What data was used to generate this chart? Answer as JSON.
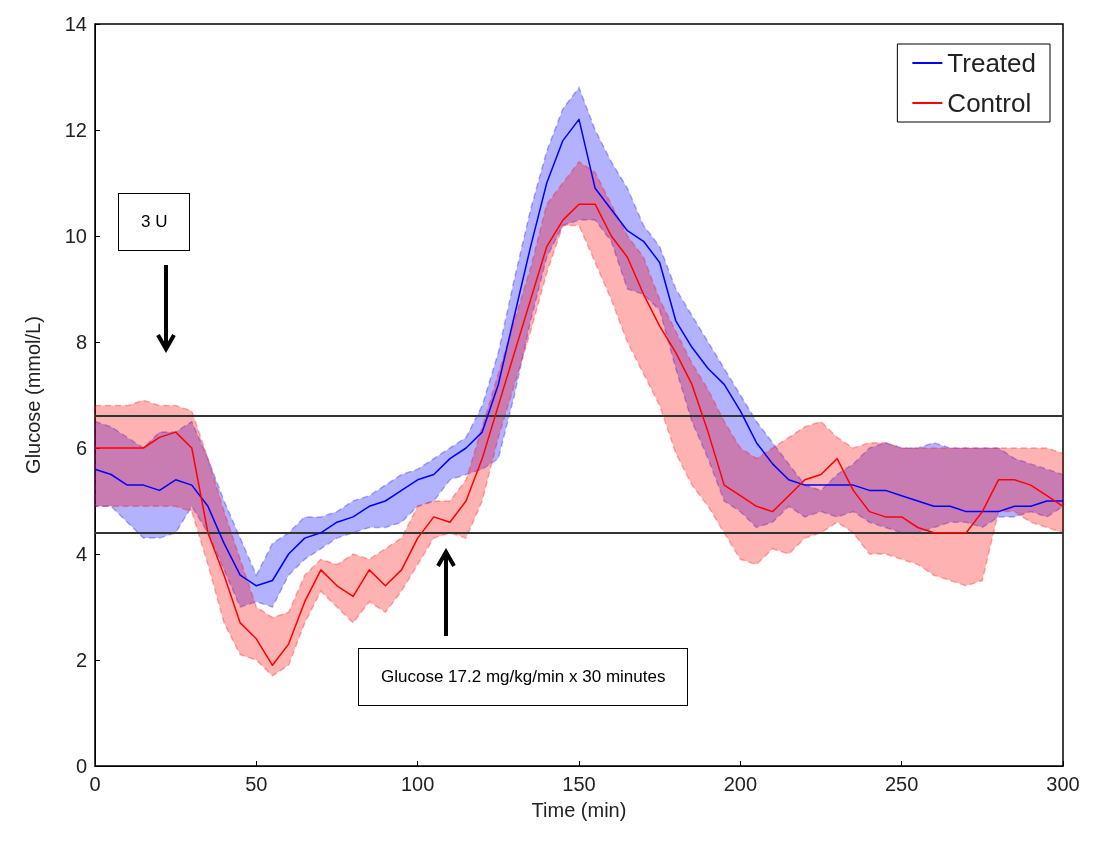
{
  "chart_data": {
    "type": "line",
    "xlabel": "Time (min)",
    "ylabel": "Glucose (mmol/L)",
    "x": [
      0,
      5,
      10,
      15,
      20,
      25,
      30,
      35,
      40,
      45,
      50,
      55,
      60,
      65,
      70,
      75,
      80,
      85,
      90,
      95,
      100,
      105,
      110,
      115,
      120,
      125,
      130,
      135,
      140,
      145,
      150,
      155,
      160,
      165,
      170,
      175,
      180,
      185,
      190,
      195,
      200,
      205,
      210,
      215,
      220,
      225,
      230,
      235,
      240,
      245,
      250,
      255,
      260,
      265,
      270,
      275,
      280,
      285,
      290,
      295,
      300
    ],
    "xlim": [
      0,
      300
    ],
    "xticks": [
      0,
      50,
      100,
      150,
      200,
      250,
      300
    ],
    "ylim": [
      0,
      14
    ],
    "yticks": [
      0,
      2,
      4,
      6,
      8,
      10,
      12,
      14
    ],
    "grid": false,
    "legend": "top right",
    "marker": "none",
    "line_style": "solid",
    "series": [
      {
        "name": "Treated",
        "color": "#0000ff",
        "values": [
          5.6,
          5.5,
          5.3,
          5.3,
          5.2,
          5.4,
          5.3,
          4.9,
          4.2,
          3.6,
          3.4,
          3.5,
          4.0,
          4.3,
          4.4,
          4.6,
          4.7,
          4.9,
          5.0,
          5.2,
          5.4,
          5.5,
          5.8,
          6.0,
          6.3,
          7.2,
          8.5,
          9.8,
          11.0,
          11.8,
          12.2,
          10.9,
          10.5,
          10.1,
          9.9,
          9.5,
          8.4,
          7.9,
          7.5,
          7.2,
          6.7,
          6.1,
          5.7,
          5.4,
          5.3,
          5.3,
          5.3,
          5.3,
          5.2,
          5.2,
          5.1,
          5.0,
          4.9,
          4.9,
          4.8,
          4.8,
          4.8,
          4.9,
          4.9,
          5.0,
          5.0
        ],
        "lower": [
          4.9,
          4.9,
          4.6,
          4.3,
          4.3,
          4.4,
          4.9,
          4.4,
          3.7,
          3.0,
          3.1,
          3.0,
          3.6,
          3.9,
          4.1,
          4.3,
          4.4,
          4.5,
          4.5,
          4.6,
          4.9,
          5.0,
          5.4,
          5.5,
          5.6,
          5.8,
          7.0,
          8.4,
          9.6,
          10.2,
          10.3,
          10.3,
          9.9,
          9.0,
          8.9,
          8.6,
          7.5,
          6.5,
          5.8,
          5.0,
          4.8,
          4.5,
          4.6,
          4.9,
          4.7,
          4.8,
          4.7,
          4.8,
          4.6,
          4.5,
          4.4,
          4.4,
          4.5,
          4.6,
          4.6,
          4.5,
          4.7,
          4.7,
          4.8,
          4.7,
          4.9
        ],
        "upper": [
          6.5,
          6.4,
          6.2,
          6.0,
          6.3,
          6.3,
          6.5,
          5.8,
          5.0,
          4.3,
          3.6,
          4.2,
          4.4,
          4.7,
          4.7,
          4.8,
          5.0,
          5.1,
          5.3,
          5.5,
          5.6,
          5.8,
          6.0,
          6.2,
          6.8,
          7.8,
          9.2,
          10.5,
          11.6,
          12.4,
          12.8,
          12.0,
          11.4,
          10.9,
          10.2,
          9.8,
          9.0,
          8.5,
          8.0,
          7.5,
          7.0,
          6.5,
          6.1,
          5.7,
          5.3,
          5.2,
          5.5,
          5.7,
          6.0,
          6.1,
          6.0,
          6.0,
          6.1,
          6.0,
          6.0,
          6.0,
          6.0,
          5.8,
          5.7,
          5.6,
          5.5
        ]
      },
      {
        "name": "Control",
        "color": "#ff0000",
        "values": [
          6.0,
          6.0,
          6.0,
          6.0,
          6.2,
          6.3,
          6.0,
          4.4,
          3.6,
          2.7,
          2.4,
          1.9,
          2.3,
          3.1,
          3.7,
          3.4,
          3.2,
          3.7,
          3.4,
          3.7,
          4.3,
          4.7,
          4.6,
          5.0,
          5.8,
          6.8,
          7.8,
          8.8,
          9.8,
          10.3,
          10.6,
          10.6,
          10.0,
          9.6,
          8.9,
          8.3,
          7.8,
          7.2,
          6.3,
          5.3,
          5.1,
          4.9,
          4.8,
          5.1,
          5.4,
          5.5,
          5.8,
          5.2,
          4.8,
          4.7,
          4.7,
          4.5,
          4.4,
          4.4,
          4.4,
          4.8,
          5.4,
          5.4,
          5.3,
          5.1,
          4.9
        ],
        "lower": [
          4.9,
          4.9,
          4.9,
          4.9,
          4.9,
          4.9,
          4.8,
          3.8,
          2.7,
          2.1,
          2.0,
          1.7,
          1.9,
          2.7,
          3.3,
          3.0,
          2.7,
          3.1,
          2.9,
          3.3,
          3.8,
          4.3,
          4.4,
          4.3,
          5.0,
          6.2,
          7.2,
          8.2,
          9.3,
          10.2,
          10.2,
          9.5,
          8.8,
          8.0,
          7.4,
          6.8,
          5.9,
          5.3,
          4.9,
          4.4,
          3.9,
          3.8,
          4.1,
          4.0,
          4.3,
          4.4,
          4.6,
          4.4,
          4.0,
          4.0,
          3.9,
          3.8,
          3.6,
          3.5,
          3.4,
          3.5,
          4.8,
          4.8,
          4.6,
          4.5,
          4.4
        ],
        "upper": [
          6.8,
          6.8,
          6.8,
          6.9,
          6.8,
          6.8,
          6.7,
          5.8,
          4.8,
          3.9,
          3.0,
          2.8,
          2.9,
          3.6,
          3.9,
          3.8,
          4.0,
          3.9,
          4.1,
          4.3,
          4.9,
          5.0,
          5.0,
          5.4,
          6.4,
          7.4,
          8.4,
          9.4,
          10.6,
          11.0,
          11.4,
          11.2,
          10.6,
          10.0,
          9.6,
          8.8,
          8.2,
          7.6,
          7.1,
          6.5,
          6.0,
          5.8,
          6.0,
          6.2,
          6.4,
          6.5,
          6.2,
          6.0,
          6.1,
          6.1,
          6.0,
          6.0,
          6.0,
          6.0,
          6.0,
          6.0,
          6.0,
          6.0,
          6.0,
          6.0,
          5.9
        ]
      }
    ],
    "ref_lines": [
      {
        "axis": "y",
        "value": 6.6,
        "color": "#333333",
        "line_style": "solid"
      },
      {
        "axis": "y",
        "value": 4.4,
        "color": "#333333",
        "line_style": "solid"
      }
    ],
    "annotations": [
      "3 U",
      "Glucose 17.2 mg/kg/min x 30 minutes"
    ]
  }
}
